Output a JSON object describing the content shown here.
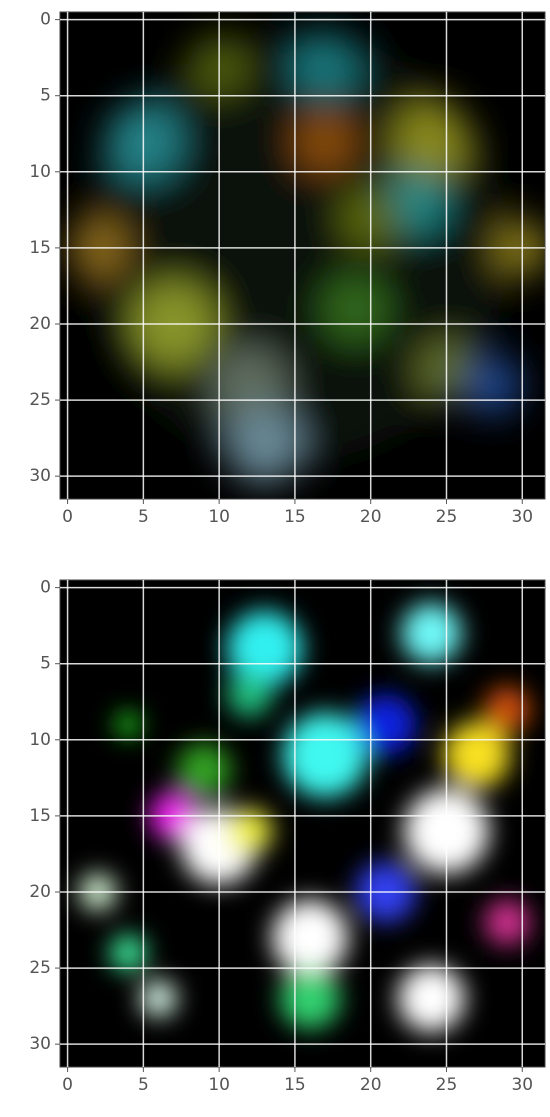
{
  "chart_data": [
    {
      "type": "image",
      "xlim": [
        -0.5,
        31.5
      ],
      "ylim": [
        31.5,
        -0.5
      ],
      "xticks": [
        0,
        5,
        10,
        15,
        20,
        25,
        30
      ],
      "yticks": [
        0,
        5,
        10,
        15,
        20,
        25,
        30
      ],
      "grid": true
    },
    {
      "type": "image",
      "xlim": [
        -0.5,
        31.5
      ],
      "ylim": [
        31.5,
        -0.5
      ],
      "xticks": [
        0,
        5,
        10,
        15,
        20,
        25,
        30
      ],
      "yticks": [
        0,
        5,
        10,
        15,
        20,
        25,
        30
      ],
      "grid": true
    }
  ]
}
